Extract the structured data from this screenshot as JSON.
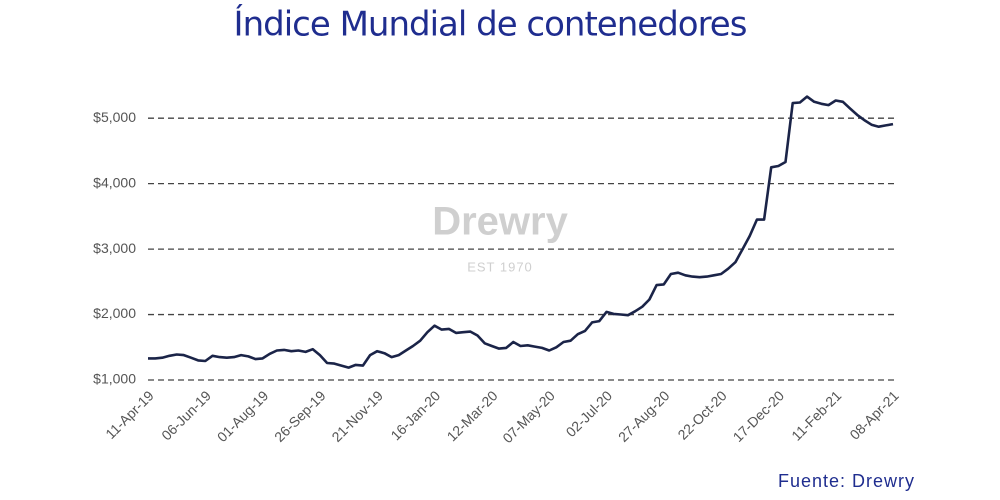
{
  "chart_data": {
    "type": "line",
    "title": "Índice Mundial de contenedores",
    "watermark": "Drewry",
    "watermark_subtitle": "EST 1970",
    "source": "Fuente:  Drewry",
    "color": "#1b2448",
    "grid": true,
    "ylim": [
      1000,
      5400
    ],
    "yticks": [
      {
        "value": 1000,
        "label": "$1,000"
      },
      {
        "value": 2000,
        "label": "$2,000"
      },
      {
        "value": 3000,
        "label": "$3,000"
      },
      {
        "value": 4000,
        "label": "$4,000"
      },
      {
        "value": 5000,
        "label": "$5,000"
      }
    ],
    "categories": [
      "11-Apr-19",
      null,
      null,
      null,
      null,
      null,
      null,
      null,
      "06-Jun-19",
      null,
      null,
      null,
      null,
      null,
      null,
      null,
      "01-Aug-19",
      null,
      null,
      null,
      null,
      null,
      null,
      null,
      "26-Sep-19",
      null,
      null,
      null,
      null,
      null,
      null,
      null,
      "21-Nov-19",
      null,
      null,
      null,
      null,
      null,
      null,
      null,
      "16-Jan-20",
      null,
      null,
      null,
      null,
      null,
      null,
      null,
      "12-Mar-20",
      null,
      null,
      null,
      null,
      null,
      null,
      null,
      "07-May-20",
      null,
      null,
      null,
      null,
      null,
      null,
      null,
      "02-Jul-20",
      null,
      null,
      null,
      null,
      null,
      null,
      null,
      "27-Aug-20",
      null,
      null,
      null,
      null,
      null,
      null,
      null,
      "22-Oct-20",
      null,
      null,
      null,
      null,
      null,
      null,
      null,
      "17-Dec-20",
      null,
      null,
      null,
      null,
      null,
      null,
      null,
      "11-Feb-21",
      null,
      null,
      null,
      null,
      null,
      null,
      null,
      "08-Apr-21"
    ],
    "values": [
      1330,
      1330,
      1340,
      1370,
      1390,
      1380,
      1340,
      1300,
      1290,
      1370,
      1350,
      1340,
      1350,
      1380,
      1360,
      1320,
      1330,
      1400,
      1450,
      1460,
      1440,
      1450,
      1430,
      1470,
      1380,
      1260,
      1250,
      1220,
      1190,
      1230,
      1220,
      1380,
      1440,
      1410,
      1350,
      1380,
      1450,
      1520,
      1600,
      1730,
      1830,
      1770,
      1780,
      1720,
      1730,
      1740,
      1680,
      1560,
      1520,
      1480,
      1490,
      1580,
      1520,
      1530,
      1510,
      1490,
      1450,
      1500,
      1580,
      1600,
      1700,
      1750,
      1880,
      1900,
      2040,
      2010,
      2000,
      1990,
      2050,
      2120,
      2230,
      2450,
      2460,
      2620,
      2640,
      2600,
      2580,
      2570,
      2580,
      2600,
      2620,
      2700,
      2800,
      3000,
      3200,
      3450,
      3450,
      4250,
      4270,
      4330,
      5230,
      5240,
      5330,
      5250,
      5220,
      5200,
      5270,
      5250,
      5150,
      5050,
      4970,
      4900,
      4870,
      4890,
      4910
    ]
  }
}
